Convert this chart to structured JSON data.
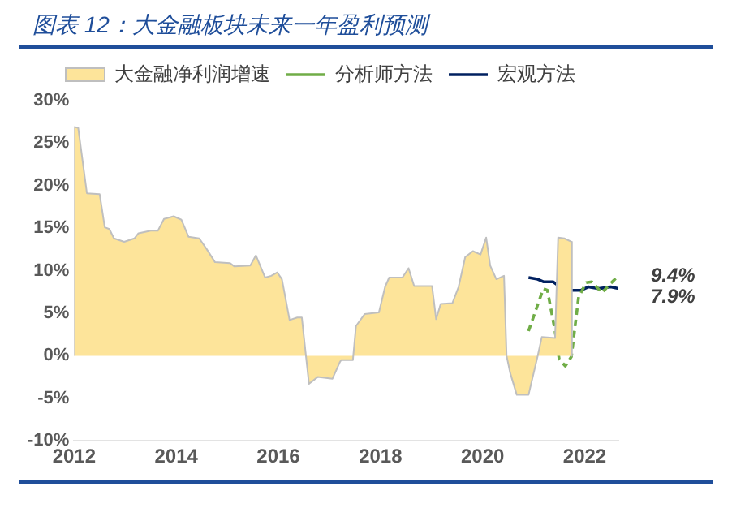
{
  "chart_data": {
    "type": "line",
    "title": "图表 12：大金融板块未来一年盈利预测",
    "series": [
      {
        "name": "大金融净利润增速",
        "type": "area",
        "color": "#fde49a",
        "x": [
          2012.0,
          2012.0,
          2012.08,
          2012.25,
          2012.5,
          2012.6,
          2012.69,
          2012.78,
          2012.98,
          2013.18,
          2013.26,
          2013.5,
          2013.64,
          2013.76,
          2013.95,
          2014.1,
          2014.24,
          2014.45,
          2014.59,
          2014.76,
          2015.05,
          2015.14,
          2015.45,
          2015.56,
          2015.74,
          2015.86,
          2015.98,
          2016.07,
          2016.22,
          2016.37,
          2016.46,
          2016.54,
          2016.6,
          2016.77,
          2017.06,
          2017.2,
          2017.23,
          2017.46,
          2017.52,
          2017.69,
          2017.97,
          2018.09,
          2018.17,
          2018.43,
          2018.55,
          2018.66,
          2019.01,
          2019.09,
          2019.18,
          2019.41,
          2019.53,
          2019.66,
          2019.81,
          2019.96,
          2020.07,
          2020.15,
          2020.27,
          2020.42,
          2020.47,
          2020.54,
          2020.67,
          2020.9,
          2021.08,
          2021.16,
          2021.42,
          2021.48,
          2021.6,
          2021.74,
          2021.75
        ],
        "values": [
          0,
          26.9,
          26.8,
          19.1,
          19.0,
          15.1,
          14.9,
          13.8,
          13.4,
          13.8,
          14.4,
          14.7,
          14.7,
          16.1,
          16.4,
          16.0,
          14.0,
          13.8,
          12.6,
          11.0,
          10.9,
          10.5,
          10.6,
          11.8,
          9.2,
          9.4,
          9.8,
          9.0,
          4.2,
          4.5,
          4.5,
          0,
          -3.3,
          -2.5,
          -2.7,
          -0.8,
          -0.5,
          -0.5,
          3.5,
          4.9,
          5.1,
          8.1,
          9.2,
          9.2,
          10.3,
          8.2,
          8.2,
          4.3,
          6.1,
          6.2,
          8.1,
          11.6,
          12.3,
          11.9,
          13.9,
          10.6,
          9.0,
          9.4,
          0,
          -2.0,
          -4.6,
          -4.6,
          0,
          2.2,
          2.1,
          13.9,
          13.8,
          13.4,
          0
        ]
      },
      {
        "name": "分析师方法",
        "line_style": "dashed",
        "color": "#70ad47",
        "x": [
          2020.9,
          2021.19,
          2021.27,
          2021.42,
          2021.5,
          2021.62,
          2021.74,
          2021.88,
          2022.03,
          2022.14,
          2022.34,
          2022.49,
          2022.66
        ],
        "values": [
          2.9,
          7.9,
          7.7,
          2.9,
          -0.4,
          -1.2,
          -0.1,
          6.9,
          8.6,
          8.7,
          7.4,
          8.4,
          9.4
        ]
      },
      {
        "name": "宏观方法",
        "line_style": "solid",
        "color": "#002060",
        "x": [
          2020.9,
          2021.08,
          2021.19,
          2021.38,
          2021.5,
          2021.68,
          2021.93,
          2022.07,
          2022.28,
          2022.51,
          2022.66
        ],
        "values": [
          9.2,
          9.0,
          8.7,
          8.7,
          8.2,
          7.7,
          7.7,
          8.1,
          7.9,
          8.1,
          7.9
        ]
      }
    ],
    "annotations": [
      {
        "text": "9.4%",
        "x": 2022.66,
        "y": 9.4
      },
      {
        "text": "7.9%",
        "x": 2022.66,
        "y": 7.9
      }
    ],
    "xlim": [
      2012,
      2022.66
    ],
    "xticks": [
      2012,
      2014,
      2016,
      2018,
      2020,
      2022
    ],
    "ylim": [
      -10,
      30
    ],
    "yticks": [
      {
        "value": -10,
        "label": "-10%"
      },
      {
        "value": -5,
        "label": "-5%"
      },
      {
        "value": 0,
        "label": "0%"
      },
      {
        "value": 5,
        "label": "5%"
      },
      {
        "value": 10,
        "label": "10%"
      },
      {
        "value": 15,
        "label": "15%"
      },
      {
        "value": 20,
        "label": "20%"
      },
      {
        "value": 25,
        "label": "25%"
      },
      {
        "value": 30,
        "label": "30%"
      }
    ],
    "grid": false,
    "legend": "top"
  }
}
